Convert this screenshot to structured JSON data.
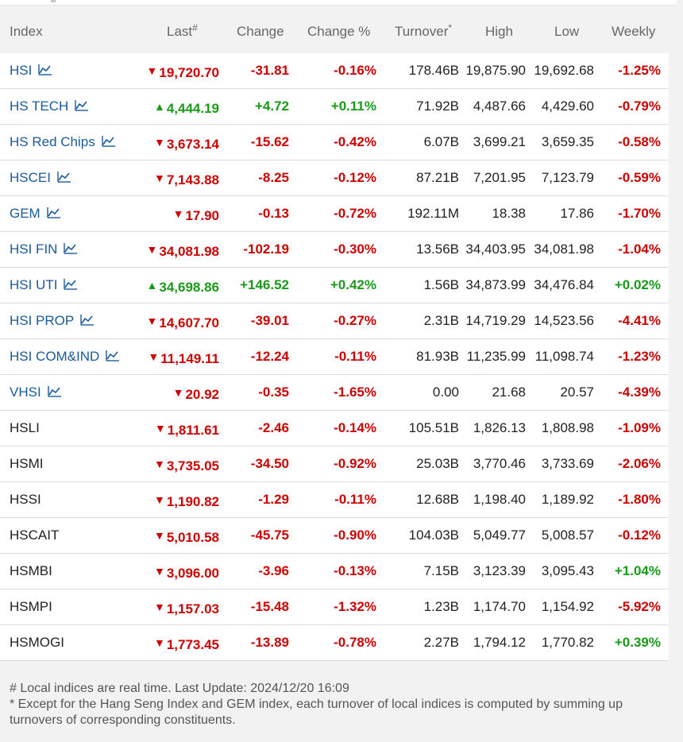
{
  "header": {
    "index": "Index",
    "last": "Last",
    "last_mark": "#",
    "change": "Change",
    "change_pct": "Change %",
    "turnover": "Turnover",
    "turnover_mark": "*",
    "high": "High",
    "low": "Low",
    "weekly": "Weekly"
  },
  "colors": {
    "up": "#1a9a1a",
    "down": "#cc0000",
    "link": "#1a5a9e"
  },
  "rows": [
    {
      "name": "HSI",
      "link": true,
      "dir": "down",
      "last": "19,720.70",
      "change": "-31.81",
      "pct": "-0.16%",
      "turnover": "178.46B",
      "high": "19,875.90",
      "low": "19,692.68",
      "weekly": "-1.25%",
      "weekly_dir": "down"
    },
    {
      "name": "HS TECH",
      "link": true,
      "dir": "up",
      "last": "4,444.19",
      "change": "+4.72",
      "pct": "+0.11%",
      "turnover": "71.92B",
      "high": "4,487.66",
      "low": "4,429.60",
      "weekly": "-0.79%",
      "weekly_dir": "down"
    },
    {
      "name": "HS Red Chips",
      "link": true,
      "dir": "down",
      "last": "3,673.14",
      "change": "-15.62",
      "pct": "-0.42%",
      "turnover": "6.07B",
      "high": "3,699.21",
      "low": "3,659.35",
      "weekly": "-0.58%",
      "weekly_dir": "down"
    },
    {
      "name": "HSCEI",
      "link": true,
      "dir": "down",
      "last": "7,143.88",
      "change": "-8.25",
      "pct": "-0.12%",
      "turnover": "87.21B",
      "high": "7,201.95",
      "low": "7,123.79",
      "weekly": "-0.59%",
      "weekly_dir": "down"
    },
    {
      "name": "GEM",
      "link": true,
      "dir": "down",
      "last": "17.90",
      "change": "-0.13",
      "pct": "-0.72%",
      "turnover": "192.11M",
      "high": "18.38",
      "low": "17.86",
      "weekly": "-1.70%",
      "weekly_dir": "down"
    },
    {
      "name": "HSI FIN",
      "link": true,
      "dir": "down",
      "last": "34,081.98",
      "change": "-102.19",
      "pct": "-0.30%",
      "turnover": "13.56B",
      "high": "34,403.95",
      "low": "34,081.98",
      "weekly": "-1.04%",
      "weekly_dir": "down"
    },
    {
      "name": "HSI UTI",
      "link": true,
      "dir": "up",
      "last": "34,698.86",
      "change": "+146.52",
      "pct": "+0.42%",
      "turnover": "1.56B",
      "high": "34,873.99",
      "low": "34,476.84",
      "weekly": "+0.02%",
      "weekly_dir": "up"
    },
    {
      "name": "HSI PROP",
      "link": true,
      "dir": "down",
      "last": "14,607.70",
      "change": "-39.01",
      "pct": "-0.27%",
      "turnover": "2.31B",
      "high": "14,719.29",
      "low": "14,523.56",
      "weekly": "-4.41%",
      "weekly_dir": "down"
    },
    {
      "name": "HSI COM&IND",
      "link": true,
      "dir": "down",
      "last": "11,149.11",
      "change": "-12.24",
      "pct": "-0.11%",
      "turnover": "81.93B",
      "high": "11,235.99",
      "low": "11,098.74",
      "weekly": "-1.23%",
      "weekly_dir": "down"
    },
    {
      "name": "VHSI",
      "link": true,
      "dir": "down",
      "last": "20.92",
      "change": "-0.35",
      "pct": "-1.65%",
      "turnover": "0.00",
      "high": "21.68",
      "low": "20.57",
      "weekly": "-4.39%",
      "weekly_dir": "down"
    },
    {
      "name": "HSLI",
      "link": false,
      "dir": "down",
      "last": "1,811.61",
      "change": "-2.46",
      "pct": "-0.14%",
      "turnover": "105.51B",
      "high": "1,826.13",
      "low": "1,808.98",
      "weekly": "-1.09%",
      "weekly_dir": "down"
    },
    {
      "name": "HSMI",
      "link": false,
      "dir": "down",
      "last": "3,735.05",
      "change": "-34.50",
      "pct": "-0.92%",
      "turnover": "25.03B",
      "high": "3,770.46",
      "low": "3,733.69",
      "weekly": "-2.06%",
      "weekly_dir": "down"
    },
    {
      "name": "HSSI",
      "link": false,
      "dir": "down",
      "last": "1,190.82",
      "change": "-1.29",
      "pct": "-0.11%",
      "turnover": "12.68B",
      "high": "1,198.40",
      "low": "1,189.92",
      "weekly": "-1.80%",
      "weekly_dir": "down"
    },
    {
      "name": "HSCAIT",
      "link": false,
      "dir": "down",
      "last": "5,010.58",
      "change": "-45.75",
      "pct": "-0.90%",
      "turnover": "104.03B",
      "high": "5,049.77",
      "low": "5,008.57",
      "weekly": "-0.12%",
      "weekly_dir": "down"
    },
    {
      "name": "HSMBI",
      "link": false,
      "dir": "down",
      "last": "3,096.00",
      "change": "-3.96",
      "pct": "-0.13%",
      "turnover": "7.15B",
      "high": "3,123.39",
      "low": "3,095.43",
      "weekly": "+1.04%",
      "weekly_dir": "up"
    },
    {
      "name": "HSMPI",
      "link": false,
      "dir": "down",
      "last": "1,157.03",
      "change": "-15.48",
      "pct": "-1.32%",
      "turnover": "1.23B",
      "high": "1,174.70",
      "low": "1,154.92",
      "weekly": "-5.92%",
      "weekly_dir": "down"
    },
    {
      "name": "HSMOGI",
      "link": false,
      "dir": "down",
      "last": "1,773.45",
      "change": "-13.89",
      "pct": "-0.78%",
      "turnover": "2.27B",
      "high": "1,794.12",
      "low": "1,770.82",
      "weekly": "+0.39%",
      "weekly_dir": "up"
    }
  ],
  "footnotes": {
    "line1": "# Local indices are real time. Last Update: 2024/12/20 16:09",
    "line2": "* Except for the Hang Seng Index and GEM index, each turnover of local indices is computed by summing up turnovers of corresponding constituents."
  }
}
